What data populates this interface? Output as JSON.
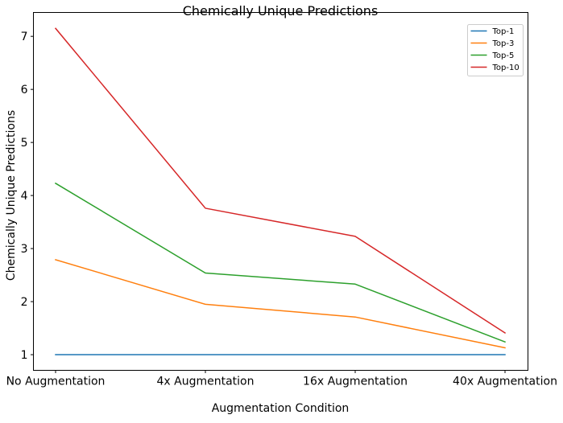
{
  "chart_data": {
    "type": "line",
    "title": "Chemically Unique Predictions",
    "xlabel": "Augmentation Condition",
    "ylabel": "Chemically Unique Predictions",
    "categories": [
      "No Augmentation",
      "4x Augmentation",
      "16x Augmentation",
      "40x Augmentation"
    ],
    "series": [
      {
        "name": "Top-1",
        "color": "#1f77b4",
        "values": [
          1.0,
          1.0,
          1.0,
          1.0
        ]
      },
      {
        "name": "Top-3",
        "color": "#ff7f0e",
        "values": [
          2.79,
          1.95,
          1.71,
          1.13
        ]
      },
      {
        "name": "Top-5",
        "color": "#2ca02c",
        "values": [
          4.23,
          2.54,
          2.33,
          1.24
        ]
      },
      {
        "name": "Top-10",
        "color": "#d62728",
        "values": [
          7.15,
          3.76,
          3.23,
          1.41
        ]
      }
    ],
    "ylim": [
      0.705,
      7.45
    ],
    "yticks": [
      "1",
      "2",
      "3",
      "4",
      "5",
      "6",
      "7"
    ],
    "grid": false,
    "legend_position": "top-right"
  }
}
